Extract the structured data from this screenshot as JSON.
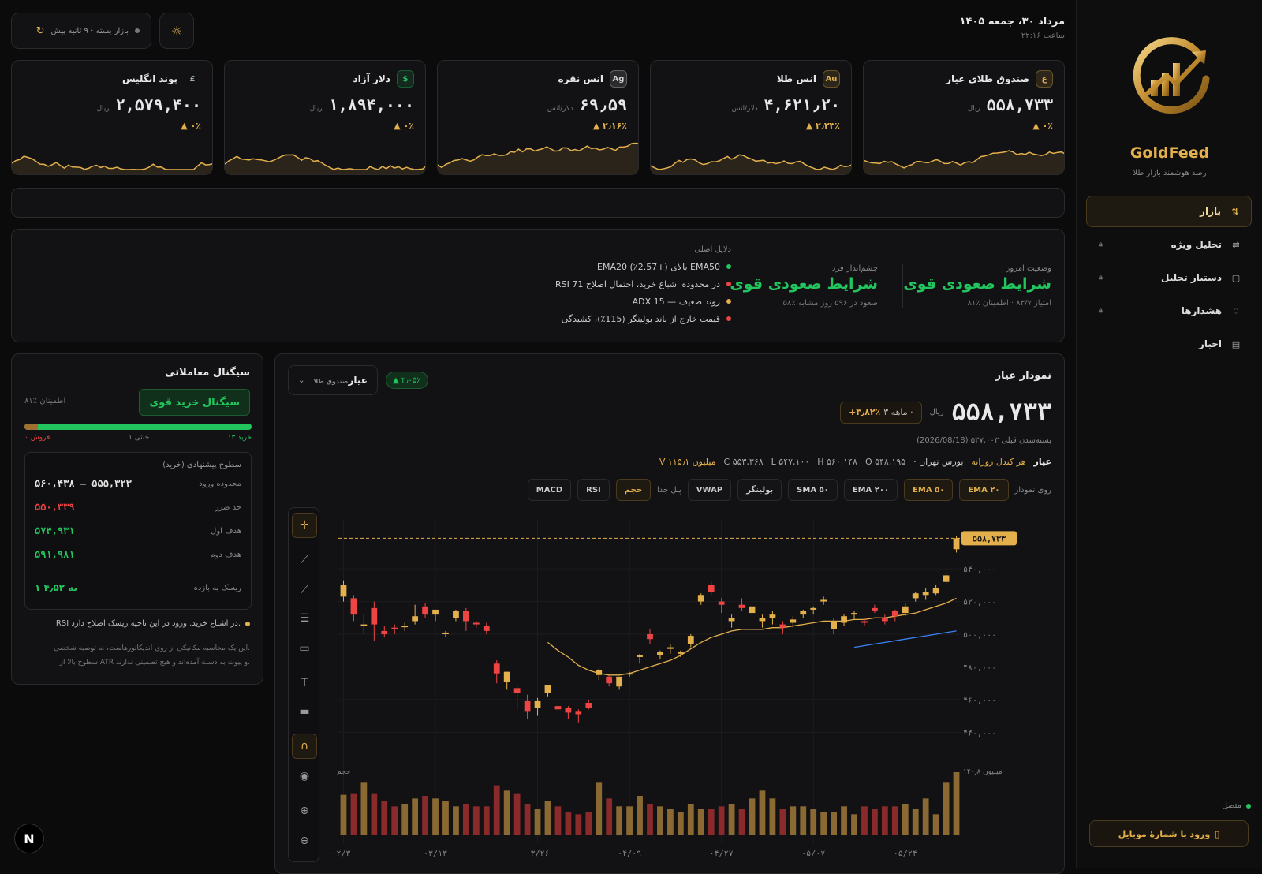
{
  "sidebar": {
    "brand": "GoldFeed",
    "tagline": "رصد هوشمند بازار طلا",
    "items": [
      {
        "label": "بازار",
        "icon": "trend-icon",
        "active": true,
        "locked": false
      },
      {
        "label": "تحلیل ویژه",
        "icon": "arrows-icon",
        "active": false,
        "locked": true
      },
      {
        "label": "دستیار تحلیل",
        "icon": "chat-icon",
        "active": false,
        "locked": true
      },
      {
        "label": "هشدارها",
        "icon": "bell-icon",
        "active": false,
        "locked": true
      },
      {
        "label": "اخبار",
        "icon": "news-icon",
        "active": false,
        "locked": false
      }
    ],
    "connection": "متصل",
    "mobile_login": "ورود با شمارهٔ موبایل"
  },
  "header": {
    "date": "۱۴۰۵ مرداد ۳۰، جمعه",
    "time": "ساعت ۲۲:۱۶",
    "market_status": "بازار بسته · ۹ ثانیه پیش"
  },
  "cards": [
    {
      "name": "صندوق طلای عیار",
      "badge": "ع",
      "badge_color": "#e3b04b",
      "price": "۵۵۸,۷۳۳",
      "unit": "ریال",
      "change": "▲ ۰٪"
    },
    {
      "name": "انس طلا",
      "badge": "Au",
      "badge_color": "#e3b04b",
      "price": "۴,۶۲۱٫۲۰",
      "unit": "دلار/انس",
      "change": "▲ ۲٫۲۳٪"
    },
    {
      "name": "انس نقره",
      "badge": "Ag",
      "badge_color": "#cfcfcf",
      "price": "۶۹٫۵۹",
      "unit": "دلار/انس",
      "change": "▲ ۲٫۱۶٪"
    },
    {
      "name": "دلار آزاد",
      "badge": "$",
      "badge_color": "#22c55e",
      "price": "۱,۸۹۴,۰۰۰",
      "unit": "ریال",
      "change": "▲ ۰٪"
    },
    {
      "name": "پوند انگلیس",
      "badge": "£",
      "badge_color": "#9ab",
      "price": "۲,۵۷۹,۴۰۰",
      "unit": "ریال",
      "change": "▲ ۰٪"
    }
  ],
  "outlook": {
    "today_label": "وضعیت امروز",
    "today_value": "شرایط صعودی قوی",
    "today_sub": "امتیاز ۸۳/۷ · اطمینان ٪۸۱",
    "tomorrow_label": "چشم‌انداز فردا",
    "tomorrow_value": "شرایط صعودی قوی",
    "tomorrow_sub": "۵۸٪ صعود در ۵۹۶ روز مشابه",
    "reasons_label": "دلایل اصلی",
    "reasons": [
      {
        "text": "EMA20 بالای (+2.57٪) EMA50",
        "color": "#22c55e"
      },
      {
        "text": "RSI 71 در محدوده اشباع خرید، احتمال اصلاح",
        "color": "#ef4444"
      },
      {
        "text": "ADX 15 — روند ضعیف",
        "color": "#e3b04b"
      },
      {
        "text": "قیمت خارج از باند بولینگر (115٪)، کشیدگی",
        "color": "#ef4444"
      }
    ]
  },
  "signal": {
    "title": "سیگنال معاملاتی",
    "value": "سیگنال خرید قوی",
    "confidence": "اطمینان ٪۸۱",
    "sell_fraction": 0.06,
    "buy_label": "خرید ۱۳",
    "neutral_label": "خنثی ۱",
    "sell_label": "فروش ۰",
    "levels_title": "سطوح پیشنهادی (خرید)",
    "levels": [
      {
        "k": "محدوده ورود",
        "v": "۵۶۰,۴۳۸ – ۵۵۵,۳۲۳",
        "color": "#e8e8e8"
      },
      {
        "k": "حد ضرر",
        "v": "۵۵۰,۳۳۹",
        "color": "#ef4444"
      },
      {
        "k": "هدف اول",
        "v": "۵۷۴,۹۳۱",
        "color": "#22c55e"
      },
      {
        "k": "هدف دوم",
        "v": "۵۹۱,۹۸۱",
        "color": "#22c55e"
      }
    ],
    "rr_label": "ریسک به بازده",
    "rr_value": "۱ به ۴٫۵۲",
    "note": "RSI در اشباع خرید. ورود در این ناحیه ریسک اصلاح دارد.",
    "disclaimer1": "این یک محاسبه مکانیکی از روی اندیکاتورهاست، نه توصیه شخصی.",
    "disclaimer2": "سطوح بالا از ATR و پیوت به دست آمده‌اند و هیچ تضمینی ندارند."
  },
  "chart_panel": {
    "title": "نمودار عیار",
    "symbol": "عیار",
    "symbol_sub": "صندوق طلا",
    "change_pill": "▲ ۳٫۰۵٪",
    "price": "۵۵۸,۷۳۳",
    "unit": "ریال",
    "period": "۳ ماهه ·",
    "period_change": "+۳٫۸۲٪",
    "prev_close": "بسته‌شدن قبلی ۵۳۷,۰۰۳ (2026/08/18)",
    "ohlc": {
      "sym": "عیار",
      "candle": "هر کندل روزانه",
      "exchange": "· بورس تهران",
      "o": "O ۵۴۸,۱۹۵",
      "h": "H ۵۶۰,۱۴۸",
      "l": "L ۵۴۷,۱۰۰",
      "c": "C ۵۵۳,۳۶۸",
      "v": "V ۱۱۵٫۱ میلیون"
    },
    "on_chart_label": "روی نمودار",
    "separate_label": "پنل جدا",
    "overlays": [
      {
        "label": "EMA ۲۰",
        "on": true
      },
      {
        "label": "EMA ۵۰",
        "on": true
      },
      {
        "label": "EMA ۲۰۰",
        "on": false
      },
      {
        "label": "SMA ۵۰",
        "on": false
      },
      {
        "label": "بولینگر",
        "on": false
      },
      {
        "label": "VWAP",
        "on": false
      }
    ],
    "panels": [
      {
        "label": "حجم",
        "on": true
      },
      {
        "label": "RSI",
        "on": false
      },
      {
        "label": "MACD",
        "on": false
      }
    ],
    "price_tag": "۵۵۸,۷۳۳",
    "vol_label": "حجم",
    "vol_max_label": "۱۴۰٫۸ میلیون"
  },
  "chart_data": {
    "type": "candlestick",
    "ylim": [
      430000,
      570000
    ],
    "yticks": [
      "۵۴۰,۰۰۰",
      "۵۲۰,۰۰۰",
      "۵۰۰,۰۰۰",
      "۴۸۰,۰۰۰",
      "۴۶۰,۰۰۰",
      "۴۴۰,۰۰۰"
    ],
    "ytick_values": [
      540000,
      520000,
      500000,
      480000,
      460000,
      440000
    ],
    "xticks": [
      "۰۲/۳۰",
      "۰۳/۱۳",
      "۰۳/۲۶",
      "۰۴/۰۹",
      "۰۴/۲۷",
      "۰۵/۰۷",
      "۰۵/۲۴"
    ],
    "xtick_index": [
      0,
      9,
      19,
      28,
      37,
      46,
      55
    ],
    "last_price": 558733,
    "candles": [
      [
        523000,
        533000,
        520000,
        530000
      ],
      [
        522000,
        524000,
        508000,
        512000
      ],
      [
        505000,
        512000,
        500000,
        506000
      ],
      [
        516000,
        520000,
        496000,
        506000
      ],
      [
        502000,
        505000,
        498000,
        500000
      ],
      [
        504000,
        506000,
        500000,
        503000
      ],
      [
        505000,
        507000,
        502000,
        505000
      ],
      [
        508000,
        518000,
        506000,
        511000
      ],
      [
        517000,
        519000,
        510000,
        512000
      ],
      [
        512000,
        515000,
        508000,
        515000
      ],
      [
        500000,
        502000,
        498000,
        501000
      ],
      [
        510000,
        515000,
        508000,
        514000
      ],
      [
        514000,
        516000,
        502000,
        508000
      ],
      [
        507000,
        508000,
        504000,
        506000
      ],
      [
        505000,
        507000,
        500000,
        502000
      ],
      [
        482000,
        484000,
        470000,
        476000
      ],
      [
        471000,
        477000,
        466000,
        477000
      ],
      [
        467000,
        468000,
        454000,
        464000
      ],
      [
        459000,
        463000,
        448000,
        453000
      ],
      [
        455000,
        461000,
        450000,
        459000
      ],
      [
        464000,
        469000,
        462000,
        469000
      ],
      [
        456000,
        457000,
        453000,
        454000
      ],
      [
        455000,
        456000,
        448000,
        452000
      ],
      [
        453000,
        454000,
        446000,
        451000
      ],
      [
        458000,
        460000,
        454000,
        455000
      ],
      [
        475000,
        479000,
        472000,
        478000
      ],
      [
        474000,
        475000,
        468000,
        470000
      ],
      [
        468000,
        474000,
        466000,
        474000
      ],
      [
        476000,
        477000,
        474000,
        476000
      ],
      [
        486000,
        488000,
        482000,
        487000
      ],
      [
        500000,
        503000,
        494000,
        497000
      ],
      [
        487000,
        490000,
        485000,
        489000
      ],
      [
        491000,
        494000,
        488000,
        492000
      ],
      [
        488000,
        490000,
        486000,
        489000
      ],
      [
        494000,
        500000,
        492000,
        499000
      ],
      [
        520000,
        525000,
        518000,
        524000
      ],
      [
        530000,
        532000,
        524000,
        526000
      ],
      [
        520000,
        522000,
        513000,
        518000
      ],
      [
        508000,
        512000,
        504000,
        510000
      ],
      [
        518000,
        522000,
        514000,
        516000
      ],
      [
        513000,
        518000,
        510000,
        517000
      ],
      [
        508000,
        512000,
        504000,
        510000
      ],
      [
        510000,
        514000,
        506000,
        512000
      ],
      [
        506000,
        508000,
        500000,
        504000
      ],
      [
        507000,
        511000,
        504000,
        509000
      ],
      [
        512000,
        515000,
        510000,
        514000
      ],
      [
        515000,
        517000,
        512000,
        516000
      ],
      [
        520000,
        523000,
        518000,
        521000
      ],
      [
        503000,
        510000,
        500000,
        508000
      ],
      [
        507000,
        512000,
        505000,
        511000
      ],
      [
        512000,
        514000,
        509000,
        513000
      ],
      [
        508000,
        510000,
        505000,
        507000
      ],
      [
        516000,
        518000,
        513000,
        514000
      ],
      [
        510000,
        512000,
        506000,
        508000
      ],
      [
        514000,
        515000,
        508000,
        511000
      ],
      [
        513000,
        519000,
        511000,
        517000
      ],
      [
        522000,
        526000,
        520000,
        525000
      ],
      [
        524000,
        528000,
        521000,
        526000
      ],
      [
        525000,
        530000,
        524000,
        528000
      ],
      [
        532000,
        538000,
        530000,
        536000
      ],
      [
        552000,
        560000,
        550000,
        558733
      ]
    ],
    "ema20": [
      null,
      null,
      null,
      null,
      null,
      null,
      null,
      null,
      null,
      null,
      null,
      null,
      null,
      null,
      null,
      null,
      null,
      null,
      null,
      null,
      495000,
      490000,
      486000,
      481000,
      478000,
      476000,
      475000,
      475000,
      476000,
      478000,
      480000,
      482000,
      484000,
      487000,
      491000,
      495000,
      498000,
      500000,
      502000,
      503000,
      503000,
      503000,
      504000,
      504000,
      505000,
      506000,
      507000,
      508000,
      508000,
      508000,
      509000,
      509000,
      510000,
      510000,
      511000,
      512000,
      513000,
      515000,
      517000,
      519000,
      522000
    ],
    "ema50": [
      null,
      null,
      null,
      null,
      null,
      null,
      null,
      null,
      null,
      null,
      null,
      null,
      null,
      null,
      null,
      null,
      null,
      null,
      null,
      null,
      null,
      null,
      null,
      null,
      null,
      null,
      null,
      null,
      null,
      null,
      null,
      null,
      null,
      null,
      null,
      null,
      null,
      null,
      null,
      null,
      null,
      null,
      null,
      null,
      null,
      null,
      null,
      null,
      null,
      null,
      492000,
      493000,
      494000,
      495000,
      496000,
      497000,
      498000,
      499000,
      500000,
      501000,
      502000
    ],
    "volume": [
      77,
      80,
      100,
      80,
      65,
      55,
      60,
      70,
      75,
      70,
      65,
      55,
      60,
      55,
      55,
      95,
      85,
      80,
      60,
      50,
      65,
      55,
      45,
      40,
      45,
      100,
      70,
      55,
      55,
      75,
      60,
      55,
      50,
      45,
      60,
      50,
      50,
      55,
      60,
      50,
      70,
      85,
      70,
      50,
      55,
      55,
      50,
      45,
      45,
      55,
      40,
      55,
      50,
      55,
      55,
      60,
      50,
      70,
      40,
      100,
      120
    ]
  }
}
